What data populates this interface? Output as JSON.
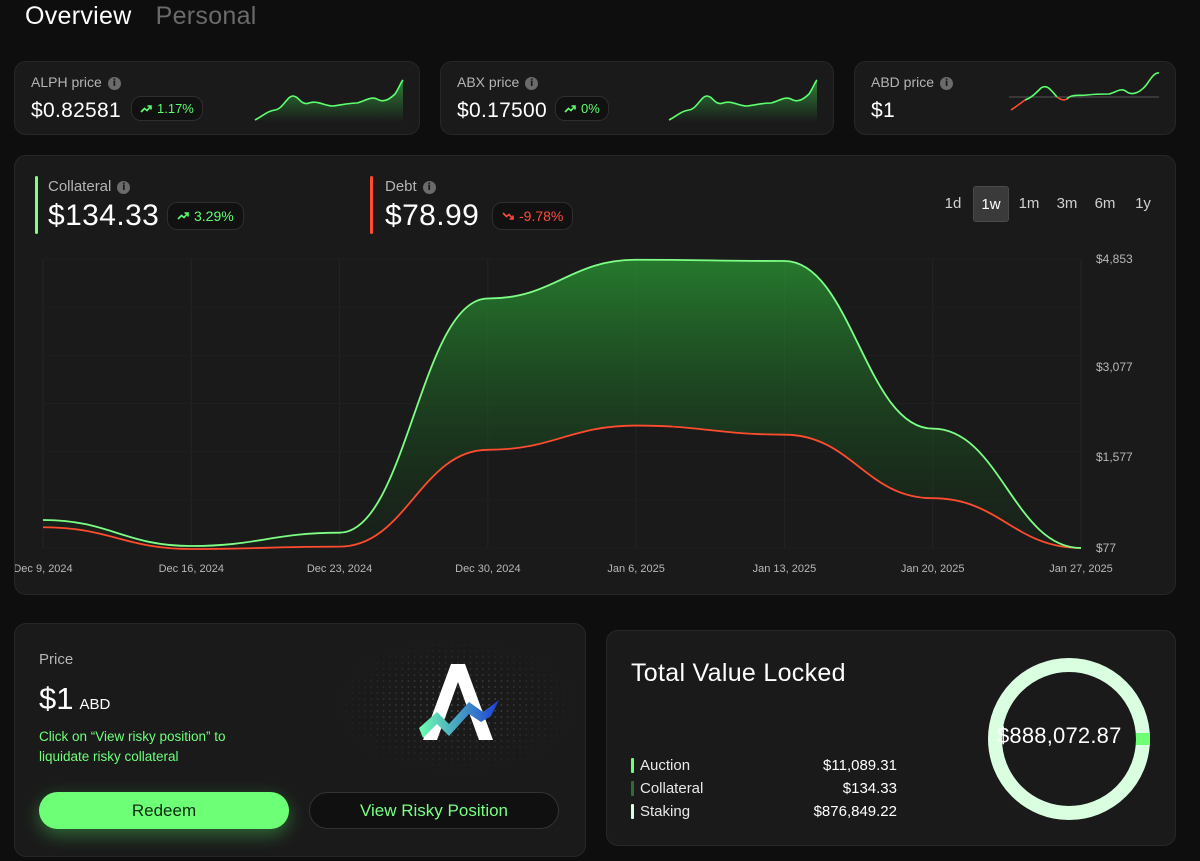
{
  "tabs": [
    {
      "label": "Overview",
      "active": true
    },
    {
      "label": "Personal",
      "active": false
    }
  ],
  "price_cards": [
    {
      "label": "ALPH price",
      "value": "$0.82581",
      "change": "1.17%",
      "direction": "up"
    },
    {
      "label": "ABX price",
      "value": "$0.17500",
      "change": "0%",
      "direction": "up"
    },
    {
      "label": "ABD price",
      "value": "$1"
    }
  ],
  "metrics": {
    "collateral": {
      "label": "Collateral",
      "value": "$134.33",
      "change": "3.29%",
      "direction": "up",
      "color": "#7dff86"
    },
    "debt": {
      "label": "Debt",
      "value": "$78.99",
      "change": "-9.78%",
      "direction": "down",
      "color": "#ff4c2e"
    }
  },
  "ranges": [
    {
      "label": "1d",
      "active": false
    },
    {
      "label": "1w",
      "active": true
    },
    {
      "label": "1m",
      "active": false
    },
    {
      "label": "3m",
      "active": false
    },
    {
      "label": "6m",
      "active": false
    },
    {
      "label": "1y",
      "active": false
    }
  ],
  "chart_data": {
    "type": "area",
    "x": [
      "Dec 9, 2024",
      "Dec 16, 2024",
      "Dec 23, 2024",
      "Dec 30, 2024",
      "Jan 6, 2025",
      "Jan 13, 2025",
      "Jan 20, 2025",
      "Jan 27, 2025"
    ],
    "y_ticks": [
      "$4,853",
      "$3,077",
      "$1,577",
      "$77"
    ],
    "series": [
      {
        "name": "Collateral",
        "color": "#7dff86",
        "values": [
          540,
          110,
          330,
          4200,
          4840,
          4820,
          2050,
          77
        ]
      },
      {
        "name": "Debt",
        "color": "#ff4c2e",
        "values": [
          420,
          60,
          100,
          1700,
          2100,
          1950,
          900,
          77
        ]
      }
    ],
    "ylim": [
      77,
      4853
    ],
    "grid": true
  },
  "price_panel": {
    "label": "Price",
    "value": "$1",
    "unit": "ABD",
    "hint": "Click on “View risky position” to liquidate risky collateral",
    "redeem_label": "Redeem",
    "risky_label": "View Risky Position"
  },
  "tvl": {
    "title": "Total Value Locked",
    "total": "$888,072.87",
    "rows": [
      {
        "label": "Auction",
        "value": "$11,089.31",
        "color": "#6dff76"
      },
      {
        "label": "Collateral",
        "value": "$134.33",
        "color": "#2f6e33"
      },
      {
        "label": "Staking",
        "value": "$876,849.22",
        "color": "#d9ffe0"
      }
    ]
  }
}
